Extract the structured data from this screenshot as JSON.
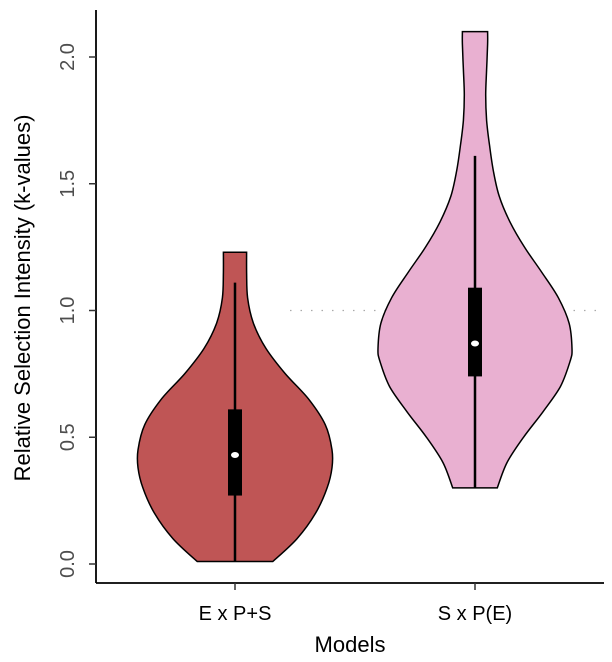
{
  "chart_data": {
    "type": "violin",
    "title": "",
    "xlabel": "Models",
    "ylabel": "Relative Selection Intensity (k-values)",
    "ylim": [
      0,
      2.1
    ],
    "yticks": [
      0.0,
      0.5,
      1.0,
      1.5,
      2.0
    ],
    "ytick_labels": [
      "0.0",
      "0.5",
      "1.0",
      "1.5",
      "2.0"
    ],
    "categories": [
      "E x P+S",
      "S x P(E)"
    ],
    "reference_line": {
      "y": 1.0,
      "style": "dotted",
      "color": "#aaaaaa"
    },
    "grid": false,
    "legend": "none",
    "series": [
      {
        "category": "E x P+S",
        "color": "#bf5555",
        "min": 0.01,
        "max": 1.23,
        "whisker_low": 0.01,
        "whisker_high": 1.11,
        "q1": 0.27,
        "median": 0.43,
        "q3": 0.61,
        "density": [
          [
            0.01,
            0.39
          ],
          [
            0.1,
            0.64
          ],
          [
            0.2,
            0.83
          ],
          [
            0.3,
            0.95
          ],
          [
            0.38,
            1.0
          ],
          [
            0.45,
            1.0
          ],
          [
            0.55,
            0.93
          ],
          [
            0.65,
            0.76
          ],
          [
            0.75,
            0.52
          ],
          [
            0.85,
            0.32
          ],
          [
            0.95,
            0.19
          ],
          [
            1.05,
            0.13
          ],
          [
            1.15,
            0.12
          ],
          [
            1.23,
            0.12
          ]
        ]
      },
      {
        "category": "S x P(E)",
        "color": "#e9b0d1",
        "min": 0.3,
        "max": 2.1,
        "whisker_low": 0.3,
        "whisker_high": 1.61,
        "q1": 0.74,
        "median": 0.87,
        "q3": 1.09,
        "density": [
          [
            0.3,
            0.23
          ],
          [
            0.4,
            0.33
          ],
          [
            0.5,
            0.5
          ],
          [
            0.6,
            0.7
          ],
          [
            0.7,
            0.88
          ],
          [
            0.8,
            0.98
          ],
          [
            0.85,
            1.0
          ],
          [
            0.95,
            0.97
          ],
          [
            1.05,
            0.86
          ],
          [
            1.15,
            0.69
          ],
          [
            1.25,
            0.51
          ],
          [
            1.35,
            0.36
          ],
          [
            1.45,
            0.25
          ],
          [
            1.55,
            0.19
          ],
          [
            1.65,
            0.15
          ],
          [
            1.75,
            0.12
          ],
          [
            1.85,
            0.11
          ],
          [
            1.95,
            0.12
          ],
          [
            2.05,
            0.13
          ],
          [
            2.1,
            0.13
          ]
        ]
      }
    ]
  }
}
